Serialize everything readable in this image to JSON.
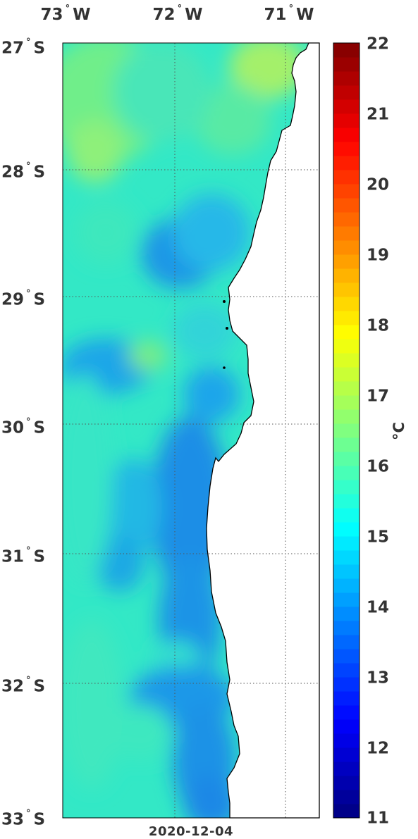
{
  "map": {
    "date": "2020-12-04",
    "unit": "°C",
    "lon_labels": [
      {
        "deg": "73",
        "hemi": "W"
      },
      {
        "deg": "72",
        "hemi": "W"
      },
      {
        "deg": "71",
        "hemi": "W"
      }
    ],
    "lat_labels": [
      {
        "deg": "27",
        "hemi": "S"
      },
      {
        "deg": "28",
        "hemi": "S"
      },
      {
        "deg": "29",
        "hemi": "S"
      },
      {
        "deg": "30",
        "hemi": "S"
      },
      {
        "deg": "31",
        "hemi": "S"
      },
      {
        "deg": "32",
        "hemi": "S"
      },
      {
        "deg": "33",
        "hemi": "S"
      }
    ],
    "colorbar": {
      "min": 11,
      "max": 22,
      "ticks": [
        "22",
        "21",
        "20",
        "19",
        "18",
        "17",
        "16",
        "15",
        "14",
        "13",
        "12",
        "11"
      ],
      "colormap": "jet"
    },
    "colors": {
      "land": "#ffffff",
      "coast": "#000000",
      "grid": "#555555"
    }
  }
}
